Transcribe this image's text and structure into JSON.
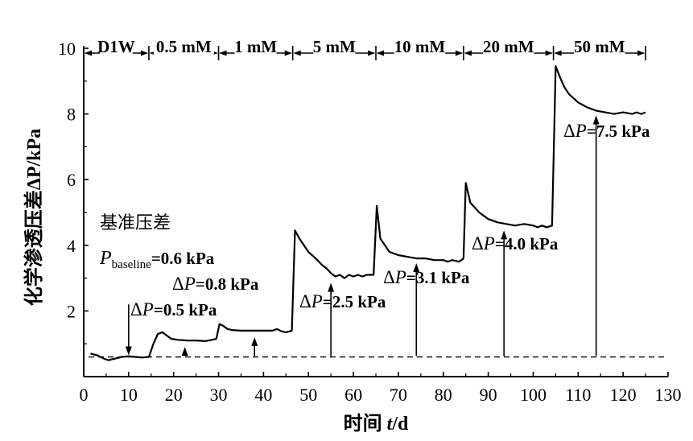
{
  "chart_data": {
    "type": "line",
    "xlabel_prefix": "时间 ",
    "xlabel_var": "t",
    "xlabel_suffix": "/d",
    "ylabel": "化学渗透压差ΔP/kPa",
    "xlim": [
      0,
      130
    ],
    "ylim": [
      0,
      10
    ],
    "xticks": [
      0,
      10,
      20,
      30,
      40,
      50,
      60,
      70,
      80,
      90,
      100,
      110,
      120,
      130
    ],
    "yticks": [
      2,
      4,
      6,
      8,
      10
    ],
    "baseline": 0.6,
    "phases": [
      {
        "label": "D1W",
        "start": 0,
        "end": 14.5
      },
      {
        "label": "0.5 mM",
        "start": 14.5,
        "end": 30
      },
      {
        "label": "1 mM",
        "start": 30,
        "end": 46.5
      },
      {
        "label": "5 mM",
        "start": 46.5,
        "end": 65
      },
      {
        "label": "10 mM",
        "start": 65,
        "end": 84.5
      },
      {
        "label": "20 mM",
        "start": 84.5,
        "end": 104.5
      },
      {
        "label": "50 mM",
        "start": 104.5,
        "end": 125
      }
    ],
    "series": [
      {
        "x": [
          1.5,
          3,
          4.5,
          5.5,
          7,
          8.5,
          10,
          11.5,
          13,
          14.5,
          15.5,
          16.5,
          17.5,
          18.5,
          19.5,
          21,
          23,
          25,
          27,
          28.5,
          29.5,
          30.2,
          31,
          32,
          33,
          35,
          38,
          40,
          42,
          43,
          44,
          45,
          46.3,
          47,
          48,
          49,
          50,
          52,
          53,
          54,
          55,
          56,
          57,
          58,
          59,
          60,
          61,
          62,
          63,
          64.5,
          65.2,
          66,
          67,
          68,
          70,
          72,
          74,
          76,
          78,
          80,
          81,
          82,
          83.5,
          84.5,
          85,
          86,
          88,
          90,
          92,
          94,
          96,
          98,
          100,
          101,
          102,
          103,
          104.2,
          105,
          106,
          107,
          108,
          110,
          112,
          114,
          116,
          118,
          120,
          122,
          123,
          124,
          125
        ],
        "y": [
          0.7,
          0.65,
          0.55,
          0.5,
          0.55,
          0.6,
          0.62,
          0.6,
          0.58,
          0.6,
          1.0,
          1.3,
          1.35,
          1.25,
          1.15,
          1.12,
          1.1,
          1.1,
          1.08,
          1.12,
          1.15,
          1.6,
          1.55,
          1.45,
          1.42,
          1.4,
          1.4,
          1.4,
          1.4,
          1.45,
          1.38,
          1.35,
          1.4,
          4.45,
          4.2,
          4.0,
          3.8,
          3.55,
          3.4,
          3.3,
          3.15,
          3.05,
          3.1,
          3.0,
          3.1,
          3.05,
          3.1,
          3.05,
          3.1,
          3.1,
          5.2,
          4.2,
          4.0,
          3.8,
          3.7,
          3.65,
          3.6,
          3.6,
          3.55,
          3.55,
          3.5,
          3.55,
          3.5,
          3.6,
          5.9,
          5.3,
          5.0,
          4.8,
          4.7,
          4.65,
          4.6,
          4.65,
          4.6,
          4.55,
          4.6,
          4.55,
          4.6,
          9.45,
          9.1,
          8.8,
          8.6,
          8.35,
          8.2,
          8.1,
          8.05,
          8.0,
          8.05,
          8.0,
          8.05,
          8.0,
          8.05
        ]
      }
    ],
    "annotations": [
      {
        "prefix": "Δ",
        "var": "P",
        "value": "=0.5 kPa",
        "arrow_x": 22.5,
        "arrow_from": 0.6,
        "arrow_to": 1.05
      },
      {
        "prefix": "Δ",
        "var": "P",
        "value": "=0.8 kPa",
        "arrow_x": 38,
        "arrow_from": 0.6,
        "arrow_to": 1.35
      },
      {
        "prefix": "Δ",
        "var": "P",
        "value": "=2.5 kPa",
        "arrow_x": 55,
        "arrow_from": 0.6,
        "arrow_to": 3.0
      },
      {
        "prefix": "Δ",
        "var": "P",
        "value": "=3.1 kPa",
        "arrow_x": 74,
        "arrow_from": 0.6,
        "arrow_to": 3.6
      },
      {
        "prefix": "Δ",
        "var": "P",
        "value": "=4.0 kPa",
        "arrow_x": 93.5,
        "arrow_from": 0.6,
        "arrow_to": 4.6
      },
      {
        "prefix": "Δ",
        "var": "P",
        "value": "=7.5 kPa",
        "arrow_x": 114,
        "arrow_from": 0.6,
        "arrow_to": 8.1
      }
    ],
    "baseline_label": {
      "title": "基准压差",
      "var": "P",
      "sub": "baseline",
      "value": "=0.6 kPa",
      "arrow_x": 10,
      "arrow_from": 2.2,
      "arrow_to": 0.65
    },
    "legend": "none",
    "grid": false
  }
}
